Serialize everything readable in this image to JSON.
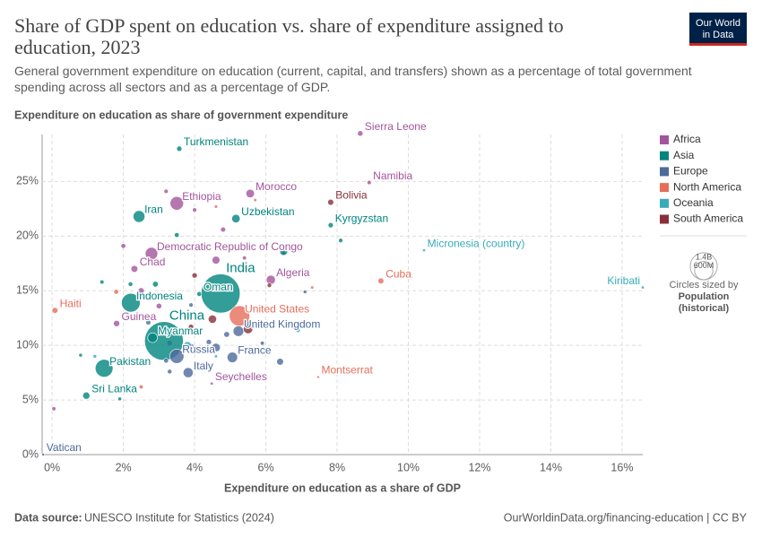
{
  "chart_data": {
    "type": "scatter",
    "title": "Share of GDP spent on education vs. share of expenditure assigned to education, 2023",
    "subtitle": "General government expenditure on education (current, capital, and transfers) shown as a percentage of total government spending across all sectors and as a percentage of GDP.",
    "ylabel": "Expenditure on education as share of government expenditure",
    "xlabel": "Expenditure on education as a share of GDP",
    "xlim": [
      -0.28,
      16.58
    ],
    "ylim": [
      0,
      29.3
    ],
    "xticks": [
      {
        "value": 0,
        "label": "0%"
      },
      {
        "value": 2,
        "label": "2%"
      },
      {
        "value": 4,
        "label": "4%"
      },
      {
        "value": 6,
        "label": "6%"
      },
      {
        "value": 8,
        "label": "8%"
      },
      {
        "value": 10,
        "label": "10%"
      },
      {
        "value": 12,
        "label": "12%"
      },
      {
        "value": 14,
        "label": "14%"
      },
      {
        "value": 16,
        "label": "16%"
      }
    ],
    "yticks": [
      {
        "value": 0,
        "label": "0%"
      },
      {
        "value": 5,
        "label": "5%"
      },
      {
        "value": 10,
        "label": "10%"
      },
      {
        "value": 15,
        "label": "15%"
      },
      {
        "value": 20,
        "label": "20%"
      },
      {
        "value": 25,
        "label": "25%"
      }
    ],
    "grid": true,
    "size_legend": {
      "title": "Circles sized by",
      "variable": "Population",
      "note": "(historical)",
      "sizes": [
        {
          "value": 1400000000,
          "label": "1.4B"
        },
        {
          "value": 600000000,
          "label": "600M"
        }
      ]
    },
    "series": [
      {
        "name": "Africa",
        "color": "#a2559c",
        "labels": [
          "Sierra Leone",
          "Namibia",
          "Morocco",
          "Ethiopia",
          "Democratic Republic of Congo",
          "Chad",
          "Algeria",
          "Guinea",
          "Seychelles",
          null,
          null,
          null,
          null,
          null,
          null,
          null,
          null,
          null,
          null,
          null,
          null
        ],
        "x": [
          8.65,
          8.9,
          5.56,
          3.5,
          2.79,
          2.31,
          6.14,
          1.81,
          4.48,
          2.0,
          3.2,
          4.8,
          6.5,
          2.5,
          3.0,
          4.6,
          0.05,
          6.9,
          4.0,
          5.4,
          3.3
        ],
        "values": [
          29.4,
          24.9,
          23.9,
          23.0,
          18.4,
          17.0,
          16.0,
          12.0,
          6.5,
          19.1,
          24.1,
          20.6,
          18.4,
          15.0,
          13.6,
          17.8,
          4.2,
          11.7,
          22.4,
          18.0,
          10.2
        ],
        "population": [
          8600000,
          2600000,
          37000000,
          126000000,
          105000000,
          19000000,
          46000000,
          14000000,
          100000,
          5000000,
          3000000,
          6000000,
          4000000,
          12000000,
          9000000,
          30000000,
          2000000,
          1500000,
          3000000,
          2000000,
          8000000
        ]
      },
      {
        "name": "Asia",
        "color": "#00847e",
        "labels": [
          "Turkmenistan",
          "Iran",
          "Uzbekistan",
          "Kyrgyzstan",
          "India",
          "Oman",
          "Indonesia",
          "China",
          "Myanmar",
          "Pakistan",
          "Sri Lanka",
          null,
          null,
          null,
          null,
          null,
          null,
          null,
          null
        ],
        "x": [
          3.57,
          2.44,
          5.16,
          7.82,
          4.73,
          4.13,
          2.21,
          3.14,
          2.82,
          1.46,
          0.96,
          2.9,
          3.5,
          6.5,
          8.1,
          1.4,
          2.2,
          0.8,
          1.9
        ],
        "values": [
          28.0,
          21.8,
          21.6,
          21.0,
          14.75,
          14.7,
          13.9,
          10.4,
          10.7,
          7.9,
          5.4,
          15.6,
          20.1,
          18.6,
          19.6,
          15.8,
          15.6,
          9.1,
          5.1
        ],
        "population": [
          7400000,
          90000000,
          36000000,
          7000000,
          1430000000,
          5000000,
          280000000,
          1410000000,
          54000000,
          245000000,
          22000000,
          10000000,
          5000000,
          30000000,
          3000000,
          2000000,
          4000000,
          1000000,
          1000000
        ]
      },
      {
        "name": "Europe",
        "color": "#4c6a9c",
        "labels": [
          "United Kingdom",
          "Russia",
          "France",
          "Italy",
          "Vatican",
          null,
          null,
          null,
          null,
          null,
          null,
          null,
          null,
          null,
          null,
          null,
          null
        ],
        "x": [
          5.23,
          3.5,
          5.06,
          3.82,
          -0.25,
          4.9,
          5.5,
          4.4,
          3.2,
          3.9,
          6.4,
          5.9,
          7.1,
          3.3,
          4.6,
          2.7,
          3.9
        ],
        "values": [
          11.3,
          9.0,
          8.9,
          7.5,
          0,
          11.0,
          12.0,
          10.3,
          8.6,
          9.9,
          8.5,
          10.2,
          14.9,
          7.6,
          9.8,
          12.1,
          13.7
        ],
        "population": [
          68000000,
          145000000,
          66000000,
          59000000,
          500,
          10000000,
          17000000,
          8000000,
          5000000,
          9000000,
          19000000,
          2000000,
          1000000,
          4000000,
          38000000,
          6000000,
          3000000
        ]
      },
      {
        "name": "North America",
        "color": "#e56e5a",
        "labels": [
          "Cuba",
          "United States",
          "Haiti",
          "Montserrat",
          null,
          null,
          null,
          null,
          null,
          null
        ],
        "x": [
          9.23,
          5.26,
          0.08,
          7.47,
          4.6,
          7.3,
          1.8,
          4.1,
          2.5,
          5.7
        ],
        "values": [
          15.9,
          12.7,
          13.2,
          7.1,
          22.7,
          15.3,
          14.9,
          11.2,
          6.2,
          23.3
        ],
        "population": [
          11000000,
          340000000,
          11700000,
          4000,
          500000,
          300000,
          5000000,
          10000000,
          2000000,
          200000
        ]
      },
      {
        "name": "Oceania",
        "color": "#38aaba",
        "labels": [
          "Micronesia (country)",
          "Kiribati",
          null,
          null,
          null,
          null
        ],
        "x": [
          10.44,
          16.58,
          3.8,
          4.6,
          6.9,
          1.2
        ],
        "values": [
          18.7,
          15.3,
          10.0,
          9.0,
          11.4,
          9.0
        ],
        "population": [
          110000,
          130000,
          26000000,
          200000,
          5000000,
          900000
        ]
      },
      {
        "name": "South America",
        "color": "#883039",
        "labels": [
          "Bolivia",
          null,
          null,
          null,
          null,
          null
        ],
        "x": [
          7.82,
          4.5,
          4.0,
          3.9,
          5.5,
          6.1
        ],
        "values": [
          23.1,
          12.4,
          16.4,
          11.7,
          11.5,
          15.5
        ],
        "population": [
          12000000,
          34000000,
          8000000,
          7000000,
          50000000,
          3500000
        ]
      }
    ]
  },
  "logo": {
    "line1": "Our World",
    "line2": "in Data"
  },
  "footer": {
    "source_label": "Data source:",
    "source": "UNESCO Institute for Statistics (2024)",
    "link": "OurWorldinData.org/financing-education | CC BY"
  }
}
